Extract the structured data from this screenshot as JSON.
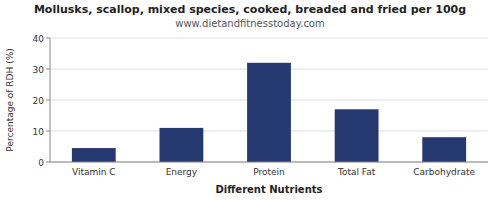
{
  "chart_data": {
    "type": "bar",
    "title": "Mollusks, scallop, mixed species, cooked, breaded and fried per 100g",
    "subtitle": "www.dietandfitnesstoday.com",
    "x_label": "Different Nutrients",
    "y_label": "Percentage of RDH (%)",
    "categories": [
      "Vitamin C",
      "Energy",
      "Protein",
      "Total Fat",
      "Carbohydrate"
    ],
    "values": [
      4.5,
      11,
      32,
      17,
      8
    ],
    "color": "#253870",
    "ylim": [
      0,
      40
    ],
    "yticks": [
      0,
      10,
      20,
      30,
      40
    ],
    "grid": true
  }
}
